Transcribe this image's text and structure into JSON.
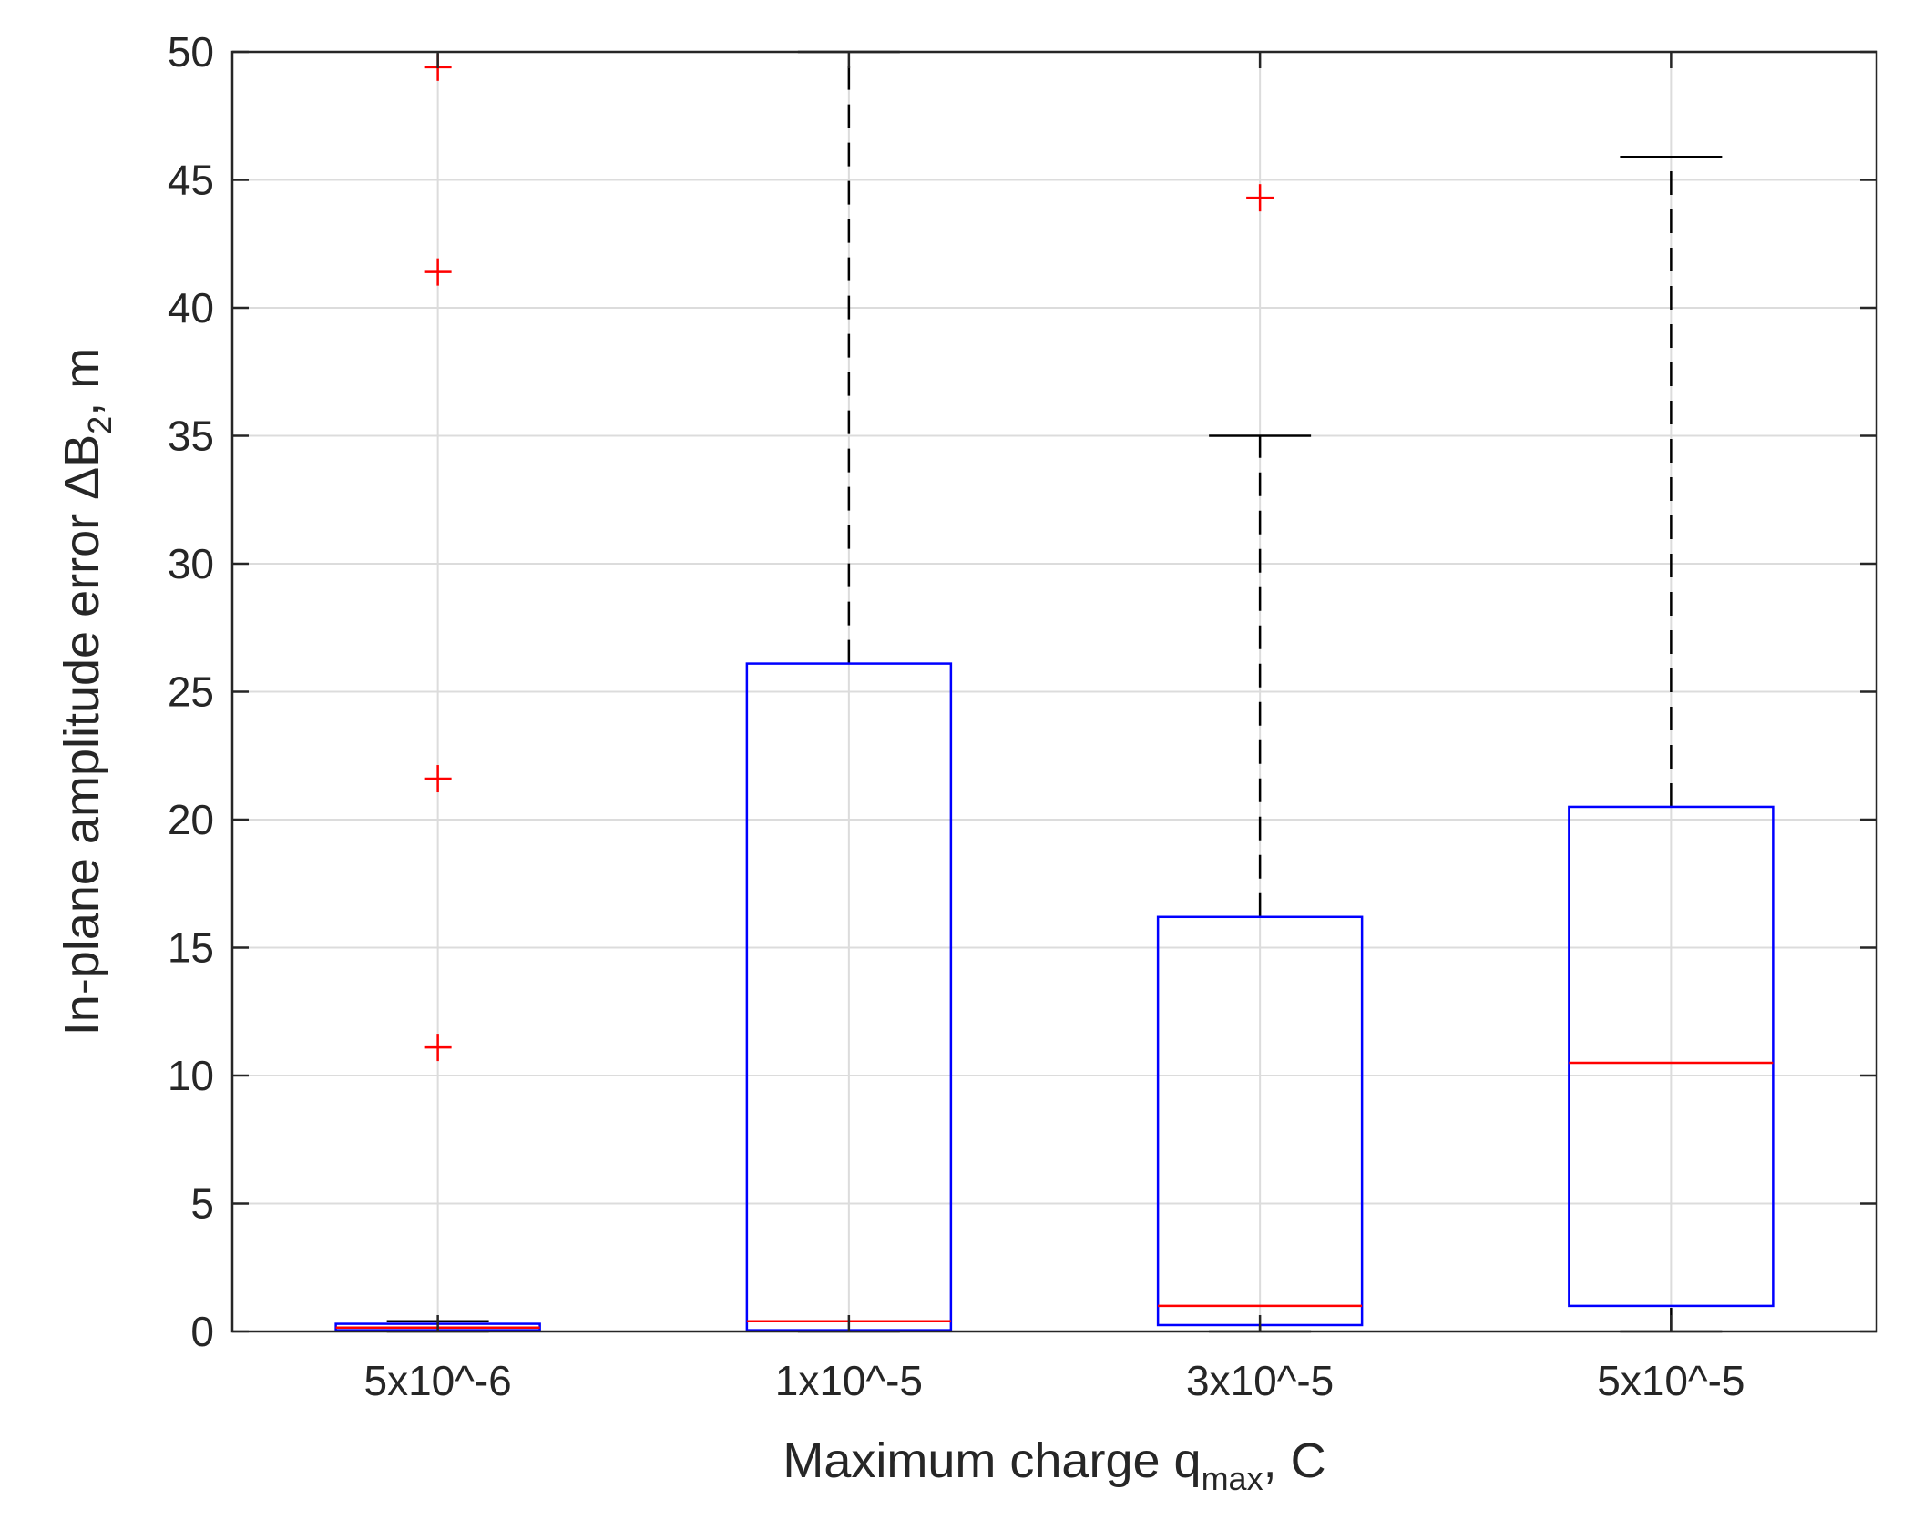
{
  "chart_data": {
    "type": "boxplot",
    "title": "",
    "xlabel": {
      "prefix": "Maximum charge q",
      "subscript": "max",
      "suffix": ", C"
    },
    "ylabel": {
      "prefix": "In-plane amplitude error ",
      "delta": "Δ",
      "symbol": "B",
      "subscript": "2",
      "suffix": ", m"
    },
    "ylim": [
      0,
      50
    ],
    "yticks": [
      0,
      5,
      10,
      15,
      20,
      25,
      30,
      35,
      40,
      45,
      50
    ],
    "grid": true,
    "categories": [
      "5x10^-6",
      "1x10^-5",
      "3x10^-5",
      "5x10^-5"
    ],
    "boxes": [
      {
        "category": "5x10^-6",
        "q1": 0.05,
        "median": 0.15,
        "q3": 0.3,
        "whisker_low": 0.0,
        "whisker_high": 0.4,
        "outliers": [
          11.1,
          21.6,
          41.4,
          49.4
        ]
      },
      {
        "category": "1x10^-5",
        "q1": 0.05,
        "median": 0.4,
        "q3": 26.1,
        "whisker_low": 0.0,
        "whisker_high": 50.0,
        "outliers": []
      },
      {
        "category": "3x10^-5",
        "q1": 0.25,
        "median": 1.0,
        "q3": 16.2,
        "whisker_low": 0.0,
        "whisker_high": 35.0,
        "outliers": [
          44.3
        ]
      },
      {
        "category": "5x10^-5",
        "q1": 1.0,
        "median": 10.5,
        "q3": 20.5,
        "whisker_low": 0.0,
        "whisker_high": 45.9,
        "outliers": []
      }
    ],
    "colors": {
      "box": "#0000ff",
      "median": "#ff0000",
      "whisker": "#000000",
      "outlier": "#ff0000",
      "grid": "#dcdcdc",
      "axis": "#262626"
    }
  }
}
